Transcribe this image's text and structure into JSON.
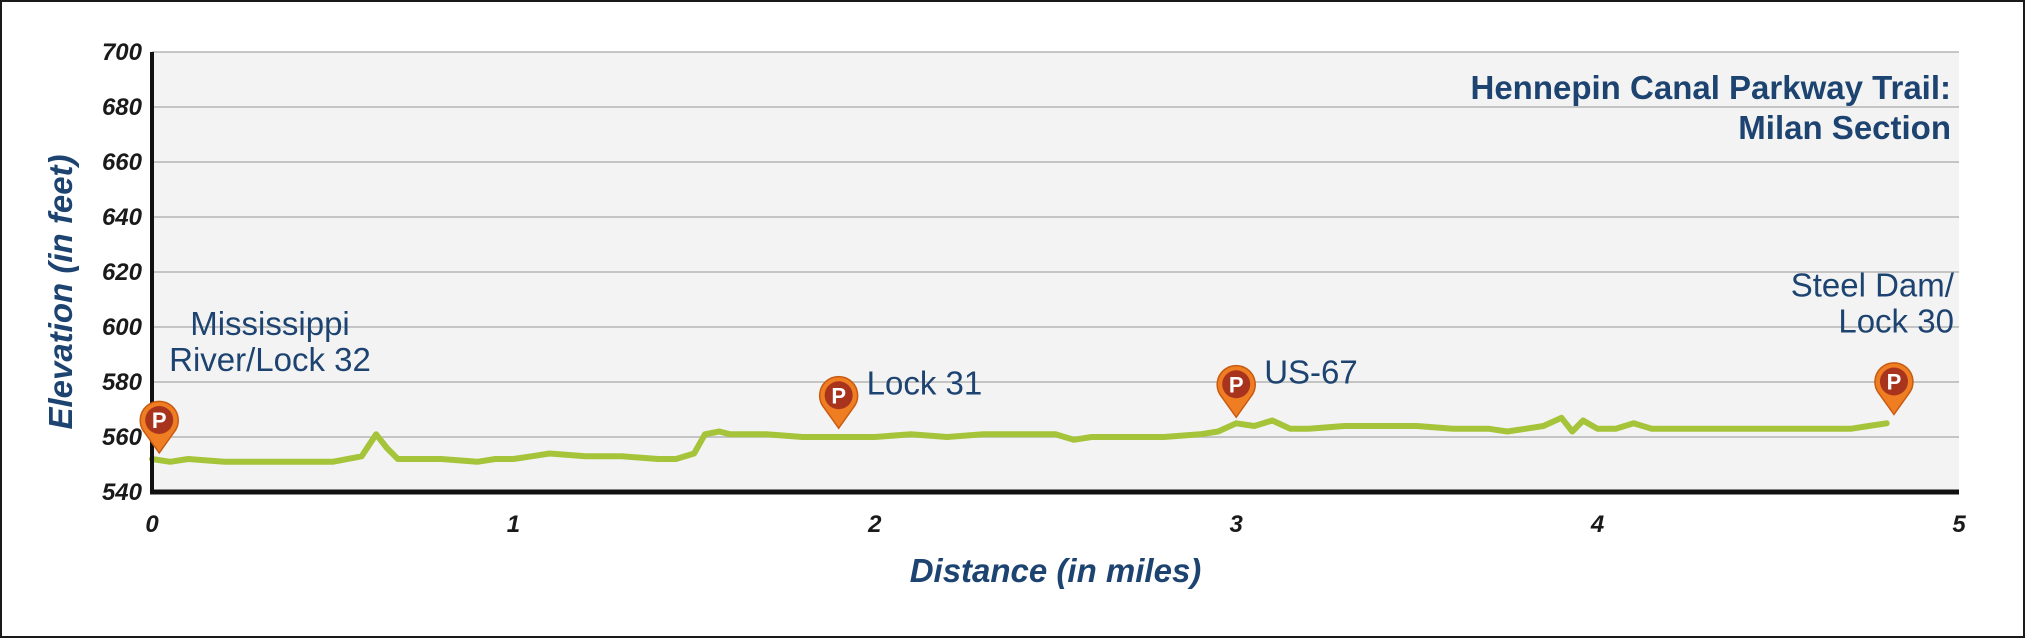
{
  "colors": {
    "line": "#a6c43a",
    "text": "#1d4370",
    "pin_fill": "#ef7d22",
    "pin_inner": "#a8341d",
    "plot_bg": "#f3f3f3",
    "grid": "#b5b5b5",
    "axis": "#111111"
  },
  "chart_data": {
    "type": "line",
    "title": [
      "Hennepin Canal Parkway Trail:",
      "Milan Section"
    ],
    "xlabel": "Distance (in miles)",
    "ylabel": "Elevation (in feet)",
    "xlim": [
      0,
      5
    ],
    "ylim": [
      540,
      700
    ],
    "xticks": [
      "0",
      "1",
      "2",
      "3",
      "4",
      "5"
    ],
    "yticks": [
      "540",
      "560",
      "580",
      "600",
      "620",
      "640",
      "660",
      "680",
      "700"
    ],
    "grid": true,
    "series": [
      {
        "x": [
          0,
          0.05,
          0.1,
          0.2,
          0.3,
          0.4,
          0.5,
          0.58,
          0.62,
          0.65,
          0.68,
          0.72,
          0.8,
          0.9,
          0.95,
          1.0,
          1.05,
          1.1,
          1.2,
          1.3,
          1.4,
          1.45,
          1.5,
          1.53,
          1.57,
          1.6,
          1.7,
          1.8,
          1.9,
          2.0,
          2.1,
          2.2,
          2.3,
          2.4,
          2.5,
          2.55,
          2.6,
          2.7,
          2.8,
          2.9,
          2.95,
          3.0,
          3.05,
          3.1,
          3.15,
          3.2,
          3.3,
          3.4,
          3.5,
          3.6,
          3.7,
          3.75,
          3.8,
          3.85,
          3.9,
          3.93,
          3.96,
          4.0,
          4.05,
          4.1,
          4.15,
          4.2,
          4.3,
          4.4,
          4.5,
          4.6,
          4.7,
          4.75,
          4.8
        ],
        "y": [
          552,
          551,
          552,
          551,
          551,
          551,
          551,
          553,
          561,
          556,
          552,
          552,
          552,
          551,
          552,
          552,
          553,
          554,
          553,
          553,
          552,
          552,
          554,
          561,
          562,
          561,
          561,
          560,
          560,
          560,
          561,
          560,
          561,
          561,
          561,
          559,
          560,
          560,
          560,
          561,
          562,
          565,
          564,
          566,
          563,
          563,
          564,
          564,
          564,
          563,
          563,
          562,
          563,
          564,
          567,
          562,
          566,
          563,
          563,
          565,
          563,
          563,
          563,
          563,
          563,
          563,
          563,
          564,
          565
        ]
      }
    ],
    "annotations": [
      {
        "lines": [
          "Mississippi",
          "River/Lock 32"
        ],
        "x": 0.02,
        "y": 552,
        "marker": "P",
        "align": "center"
      },
      {
        "lines": [
          "Lock 31"
        ],
        "x": 1.9,
        "y": 561,
        "marker": "P",
        "align": "left"
      },
      {
        "lines": [
          "US-67"
        ],
        "x": 3.0,
        "y": 565,
        "marker": "P",
        "align": "left"
      },
      {
        "lines": [
          "Steel Dam/",
          "Lock 30"
        ],
        "x": 4.82,
        "y": 566,
        "marker": "P",
        "align": "right"
      }
    ]
  }
}
